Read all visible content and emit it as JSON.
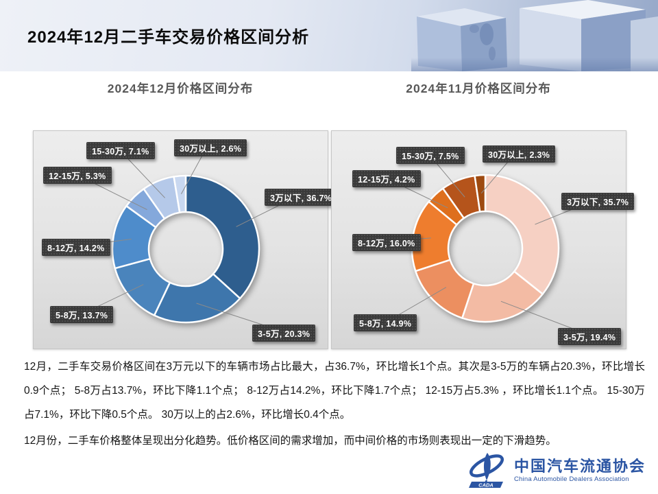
{
  "header": {
    "title": "2024年12月二手车交易价格区间分析"
  },
  "chart_data": [
    {
      "type": "pie",
      "variant": "donut",
      "title": "2024年12月价格区间分布",
      "unit": "%",
      "legend_position": "none",
      "categories": [
        "3万以下",
        "3-5万",
        "5-8万",
        "8-12万",
        "12-15万",
        "15-30万",
        "30万以上"
      ],
      "values": [
        36.7,
        20.3,
        13.7,
        14.2,
        5.3,
        7.1,
        2.6
      ],
      "labels": [
        "3万以下, 36.7%",
        "3-5万, 20.3%",
        "5-8万, 13.7%",
        "8-12万, 14.2%",
        "12-15万, 5.3%",
        "15-30万, 7.1%",
        "30万以上, 2.6%"
      ],
      "colors": [
        "#2e5e8e",
        "#3e76ac",
        "#4a84bc",
        "#4e8ccb",
        "#84a8db",
        "#b5c9e9",
        "#c9d8f0"
      ]
    },
    {
      "type": "pie",
      "variant": "donut",
      "title": "2024年11月价格区间分布",
      "unit": "%",
      "legend_position": "none",
      "categories": [
        "3万以下",
        "3-5万",
        "5-8万",
        "8-12万",
        "12-15万",
        "15-30万",
        "30万以上"
      ],
      "values": [
        35.7,
        19.4,
        14.9,
        16.0,
        4.2,
        7.5,
        2.3
      ],
      "labels": [
        "3万以下, 35.7%",
        "3-5万, 19.4%",
        "5-8万, 14.9%",
        "8-12万, 16.0%",
        "12-15万, 4.2%",
        "15-30万, 7.5%",
        "30万以上, 2.3%"
      ],
      "colors": [
        "#f6d0c3",
        "#f3bba4",
        "#ec8f60",
        "#ee7d2e",
        "#de6f1d",
        "#b5541b",
        "#9e4a10"
      ]
    }
  ],
  "analysis": {
    "paragraphs": [
      "12月，二手车交易价格区间在3万元以下的车辆市场占比最大，占36.7%，环比增长1个点。其次是3-5万的车辆占20.3%，环比增长0.9个点；  5-8万占13.7%，环比下降1.1个点；  8-12万占14.2%，环比下降1.7个点；  12-15万占5.3% ，环比增长1.1个点。 15-30万占7.1%，环比下降0.5个点。  30万以上的占2.6%，环比增长0.4个点。",
      "12月份，二手车价格整体呈现出分化趋势。低价格区间的需求增加，而中间价格的市场则表现出一定的下滑趋势。"
    ]
  },
  "footer": {
    "logo_text": "CADA",
    "org_cn": "中国汽车流通协会",
    "org_en": "China Automobile Dealers Association",
    "brand_color": "#2b55a3"
  }
}
